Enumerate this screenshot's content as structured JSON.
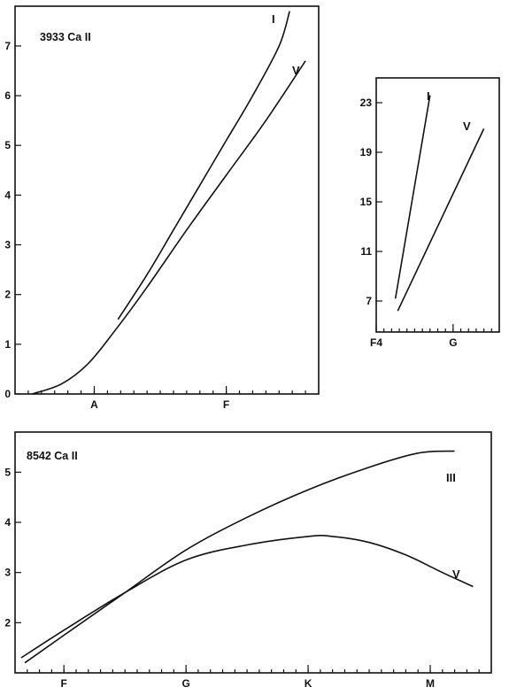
{
  "chart_data": [
    {
      "type": "line",
      "title": "3933 Ca II",
      "x_ticks": [
        {
          "label": "A",
          "value": 1
        },
        {
          "label": "F",
          "value": 2
        }
      ],
      "xlim": [
        0.4,
        2.7
      ],
      "ylim": [
        0,
        7.8
      ],
      "y_ticks": [
        0,
        1,
        2,
        3,
        4,
        5,
        6,
        7
      ],
      "series": [
        {
          "name": "I",
          "x": [
            1.18,
            1.4,
            1.6,
            1.8,
            2.0,
            2.2,
            2.4,
            2.48
          ],
          "y": [
            1.5,
            2.4,
            3.3,
            4.2,
            5.1,
            6.0,
            7.0,
            7.7
          ]
        },
        {
          "name": "V",
          "x": [
            0.53,
            0.75,
            0.95,
            1.15,
            1.4,
            1.7,
            2.0,
            2.3,
            2.6
          ],
          "y": [
            0.0,
            0.2,
            0.6,
            1.25,
            2.15,
            3.3,
            4.4,
            5.5,
            6.7
          ]
        }
      ]
    },
    {
      "type": "line",
      "title": "",
      "x_ticks": [
        {
          "label": "F4",
          "value": 0
        },
        {
          "label": "G",
          "value": 1
        }
      ],
      "xlim": [
        0,
        1.6
      ],
      "ylim": [
        4.5,
        25
      ],
      "y_ticks": [
        7,
        11,
        15,
        19,
        23
      ],
      "series": [
        {
          "name": "I",
          "x": [
            0.25,
            0.7
          ],
          "y": [
            7.2,
            23.6
          ]
        },
        {
          "name": "V",
          "x": [
            0.28,
            1.4
          ],
          "y": [
            6.2,
            20.9
          ]
        }
      ]
    },
    {
      "type": "line",
      "title": "8542 Ca II",
      "x_ticks": [
        {
          "label": "F",
          "value": 0
        },
        {
          "label": "G",
          "value": 1
        },
        {
          "label": "K",
          "value": 2
        },
        {
          "label": "M",
          "value": 3
        }
      ],
      "xlim": [
        -0.4,
        3.5
      ],
      "ylim": [
        1.0,
        5.8
      ],
      "y_ticks": [
        2,
        3,
        4,
        5
      ],
      "series": [
        {
          "name": "III",
          "x": [
            -0.32,
            0.0,
            0.5,
            1.0,
            1.5,
            2.0,
            2.5,
            2.9,
            3.2
          ],
          "y": [
            1.2,
            1.75,
            2.6,
            3.45,
            4.1,
            4.65,
            5.1,
            5.38,
            5.42
          ]
        },
        {
          "name": "V",
          "x": [
            -0.35,
            0.0,
            0.5,
            1.0,
            1.5,
            2.0,
            2.2,
            2.5,
            2.8,
            3.1,
            3.35
          ],
          "y": [
            1.3,
            1.85,
            2.6,
            3.25,
            3.55,
            3.72,
            3.72,
            3.6,
            3.35,
            3.0,
            2.72
          ]
        }
      ]
    }
  ]
}
